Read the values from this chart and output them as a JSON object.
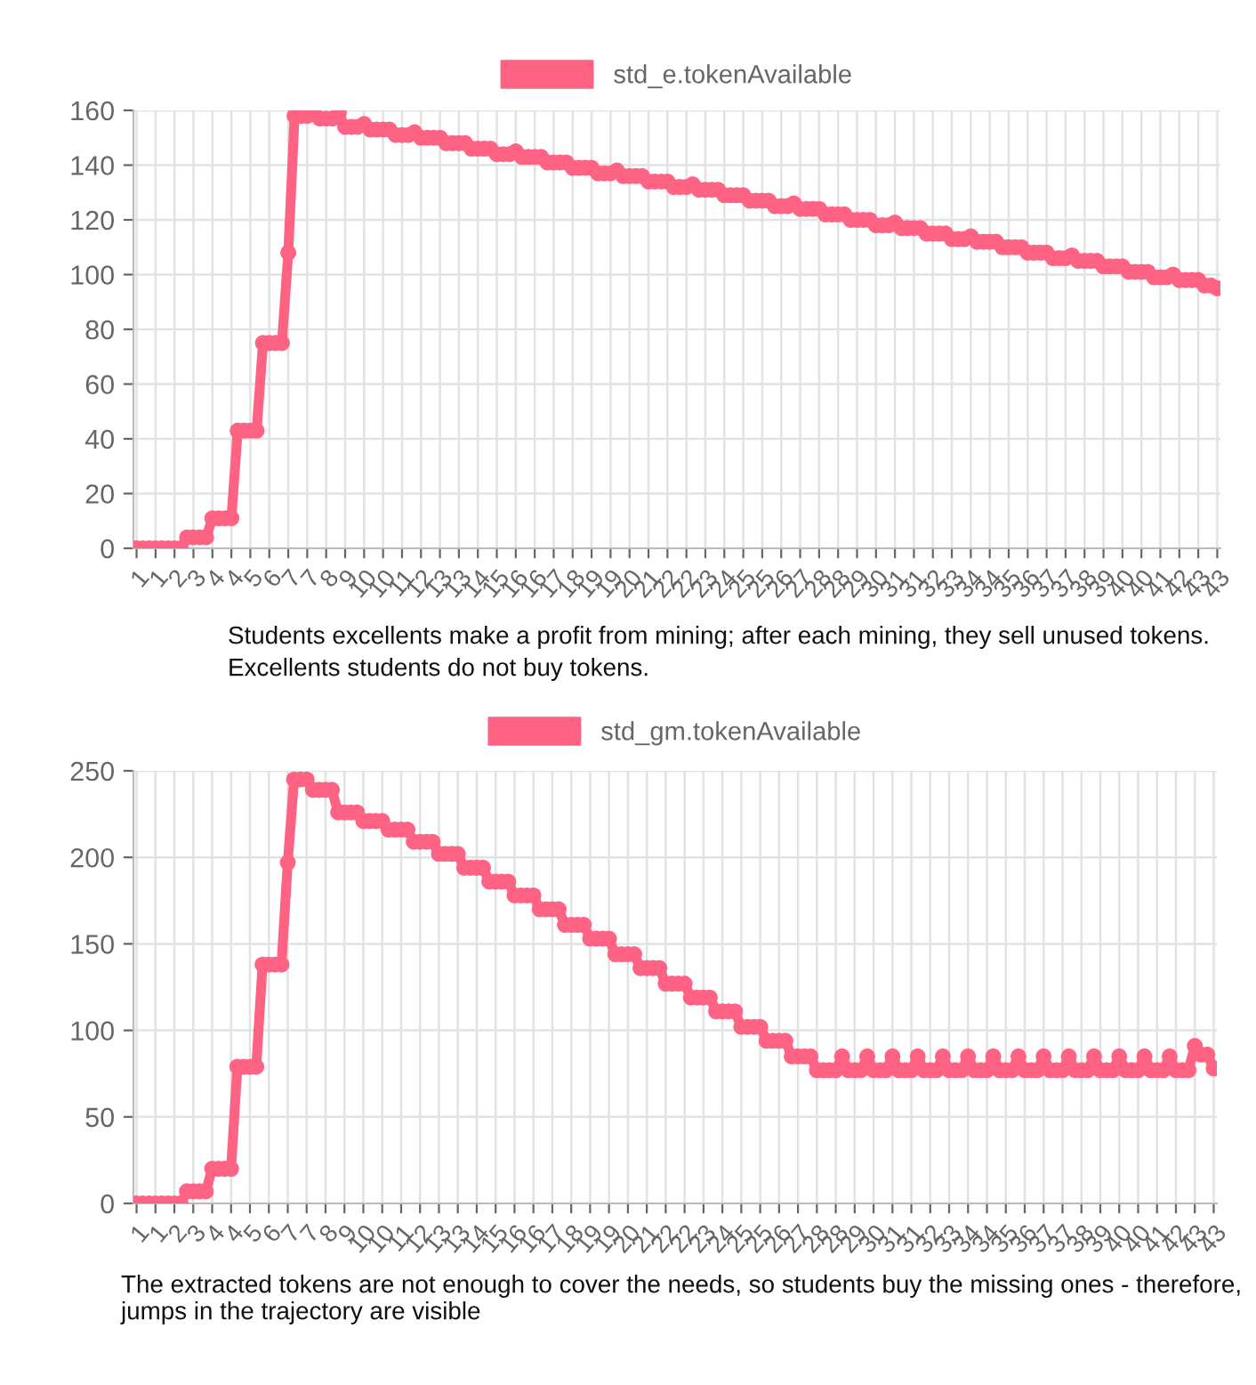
{
  "chart_data": [
    {
      "type": "line",
      "categories": [
        "1",
        null,
        null,
        "1",
        null,
        null,
        "2",
        null,
        null,
        "3",
        null,
        null,
        "4",
        null,
        null,
        "4",
        null,
        null,
        "5",
        null,
        null,
        "6",
        null,
        null,
        "7",
        null,
        null,
        "7",
        null,
        null,
        "8",
        null,
        null,
        "9",
        null,
        null,
        "10",
        null,
        null,
        "10",
        null,
        null,
        "11",
        null,
        null,
        "12",
        null,
        null,
        "13",
        null,
        null,
        "13",
        null,
        null,
        "14",
        null,
        null,
        "15",
        null,
        null,
        "16",
        null,
        null,
        "16",
        null,
        null,
        "17",
        null,
        null,
        "18",
        null,
        null,
        "19",
        null,
        null,
        "19",
        null,
        null,
        "20",
        null,
        null,
        "21",
        null,
        null,
        "22",
        null,
        null,
        "22",
        null,
        null,
        "23",
        null,
        null,
        "24",
        null,
        null,
        "25",
        null,
        null,
        "25",
        null,
        null,
        "26",
        null,
        null,
        "27",
        null,
        null,
        "28",
        null,
        null,
        "28",
        null,
        null,
        "29",
        null,
        null,
        "30",
        null,
        null,
        "31",
        null,
        null,
        "31",
        null,
        null,
        "32",
        null,
        null,
        "33",
        null,
        null,
        "34",
        null,
        null,
        "34",
        null,
        null,
        "35",
        null,
        null,
        "36",
        null,
        null,
        "37",
        null,
        null,
        "37",
        null,
        null,
        "38",
        null,
        null,
        "39",
        null,
        null,
        "40",
        null,
        null,
        "40",
        null,
        null,
        "41",
        null,
        null,
        "42",
        null,
        null,
        "43",
        null,
        null,
        "43"
      ],
      "series": [
        {
          "name": "std_e.tokenAvailable",
          "color": "#ff6384",
          "values": [
            0,
            0,
            0,
            0,
            0,
            0,
            0,
            0,
            4,
            4,
            4,
            4,
            11,
            11,
            11,
            11,
            43,
            43,
            43,
            43,
            75,
            75,
            75,
            75,
            108,
            158,
            158,
            158,
            160,
            157,
            157,
            157,
            159,
            154,
            154,
            154,
            155,
            153,
            153,
            153,
            153,
            151,
            151,
            151,
            152,
            150,
            150,
            150,
            150,
            148,
            148,
            148,
            148,
            146,
            146,
            146,
            146,
            144,
            144,
            144,
            145,
            143,
            143,
            143,
            143,
            141,
            141,
            141,
            141,
            139,
            139,
            139,
            139,
            137,
            137,
            137,
            138,
            136,
            136,
            136,
            136,
            134,
            134,
            134,
            134,
            132,
            132,
            132,
            133,
            131,
            131,
            131,
            131,
            129,
            129,
            129,
            129,
            127,
            127,
            127,
            127,
            125,
            125,
            125,
            126,
            124,
            124,
            124,
            124,
            122,
            122,
            122,
            122,
            120,
            120,
            120,
            120,
            118,
            118,
            118,
            119,
            117,
            117,
            117,
            117,
            115,
            115,
            115,
            115,
            113,
            113,
            113,
            114,
            112,
            112,
            112,
            112,
            110,
            110,
            110,
            110,
            108,
            108,
            108,
            108,
            106,
            106,
            106,
            107,
            105,
            105,
            105,
            105,
            103,
            103,
            103,
            103,
            101,
            101,
            101,
            101,
            99,
            99,
            99,
            100,
            98,
            98,
            98,
            98,
            96,
            96,
            95
          ]
        }
      ],
      "ylim": [
        0,
        160
      ],
      "yticks": [
        0,
        20,
        40,
        60,
        80,
        100,
        120,
        140,
        160
      ],
      "grid": true,
      "legend": "top",
      "marker": "circle",
      "line_style": "solid",
      "annotations": [
        "Students excellents make a profit from mining; after each mining, they sell unused tokens.",
        "Excellents students do not buy tokens."
      ]
    },
    {
      "type": "line",
      "categories": [
        "1",
        null,
        null,
        "1",
        null,
        null,
        "2",
        null,
        null,
        "3",
        null,
        null,
        "4",
        null,
        null,
        "4",
        null,
        null,
        "5",
        null,
        null,
        "6",
        null,
        null,
        "7",
        null,
        null,
        "7",
        null,
        null,
        "8",
        null,
        null,
        "9",
        null,
        null,
        "10",
        null,
        null,
        "10",
        null,
        null,
        "11",
        null,
        null,
        "12",
        null,
        null,
        "13",
        null,
        null,
        "13",
        null,
        null,
        "14",
        null,
        null,
        "15",
        null,
        null,
        "16",
        null,
        null,
        "16",
        null,
        null,
        "17",
        null,
        null,
        "18",
        null,
        null,
        "19",
        null,
        null,
        "19",
        null,
        null,
        "20",
        null,
        null,
        "21",
        null,
        null,
        "22",
        null,
        null,
        "22",
        null,
        null,
        "23",
        null,
        null,
        "24",
        null,
        null,
        "25",
        null,
        null,
        "25",
        null,
        null,
        "26",
        null,
        null,
        "27",
        null,
        null,
        "28",
        null,
        null,
        "28",
        null,
        null,
        "29",
        null,
        null,
        "30",
        null,
        null,
        "31",
        null,
        null,
        "31",
        null,
        null,
        "32",
        null,
        null,
        "33",
        null,
        null,
        "34",
        null,
        null,
        "34",
        null,
        null,
        "35",
        null,
        null,
        "36",
        null,
        null,
        "37",
        null,
        null,
        "37",
        null,
        null,
        "38",
        null,
        null,
        "39",
        null,
        null,
        "40",
        null,
        null,
        "40",
        null,
        null,
        "41",
        null,
        null,
        "42",
        null,
        null,
        "43",
        null,
        null,
        "43"
      ],
      "series": [
        {
          "name": "std_gm.tokenAvailable",
          "color": "#ff6384",
          "values": [
            0,
            0,
            0,
            0,
            0,
            0,
            0,
            0,
            7,
            7,
            7,
            7,
            20,
            20,
            20,
            20,
            79,
            79,
            79,
            79,
            138,
            138,
            138,
            138,
            197,
            245,
            245,
            245,
            239,
            239,
            239,
            239,
            226,
            226,
            226,
            226,
            221,
            221,
            221,
            221,
            216,
            216,
            216,
            216,
            209,
            209,
            209,
            209,
            202,
            202,
            202,
            202,
            194,
            194,
            194,
            194,
            186,
            186,
            186,
            186,
            178,
            178,
            178,
            178,
            170,
            170,
            170,
            170,
            161,
            161,
            161,
            161,
            153,
            153,
            153,
            153,
            144,
            144,
            144,
            144,
            136,
            136,
            136,
            136,
            127,
            127,
            127,
            127,
            119,
            119,
            119,
            119,
            111,
            111,
            111,
            111,
            102,
            102,
            102,
            102,
            94,
            94,
            94,
            94,
            85,
            85,
            85,
            85,
            77,
            77,
            77,
            77,
            85,
            77,
            77,
            77,
            85,
            77,
            77,
            77,
            85,
            77,
            77,
            77,
            85,
            77,
            77,
            77,
            85,
            77,
            77,
            77,
            85,
            77,
            77,
            77,
            85,
            77,
            77,
            77,
            85,
            77,
            77,
            77,
            85,
            77,
            77,
            77,
            85,
            77,
            77,
            77,
            85,
            77,
            77,
            77,
            85,
            77,
            77,
            77,
            85,
            77,
            77,
            77,
            85,
            77,
            77,
            77,
            91,
            86,
            86,
            78
          ]
        }
      ],
      "ylim": [
        0,
        250
      ],
      "yticks": [
        0,
        50,
        100,
        150,
        200,
        250
      ],
      "grid": true,
      "legend": "top",
      "marker": "circle",
      "line_style": "solid",
      "annotations": [
        "The extracted tokens are not enough to cover the needs, so students buy the missing ones - therefore, jumps in the trajectory are visible"
      ]
    }
  ]
}
